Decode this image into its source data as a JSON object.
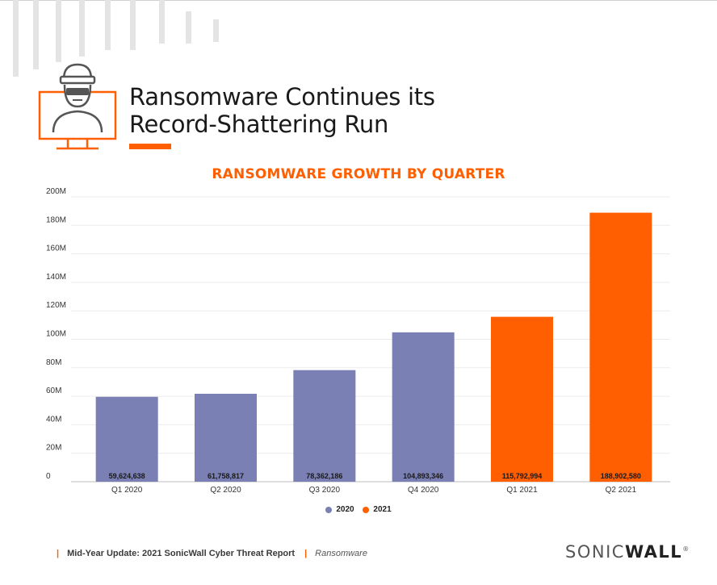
{
  "header": {
    "title_line1": "Ransomware Continues its",
    "title_line2": "Record-Shattering Run"
  },
  "chart_data": {
    "type": "bar",
    "title": "RANSOMWARE GROWTH BY QUARTER",
    "categories": [
      "Q1 2020",
      "Q2 2020",
      "Q3 2020",
      "Q4 2020",
      "Q1 2021",
      "Q2 2021"
    ],
    "values": [
      59624638,
      61758817,
      78362186,
      104893346,
      115792994,
      188902580
    ],
    "value_labels": [
      "59,624,638",
      "61,758,817",
      "78,362,186",
      "104,893,346",
      "115,792,994",
      "188,902,580"
    ],
    "bar_series": [
      "2020",
      "2020",
      "2020",
      "2020",
      "2021",
      "2021"
    ],
    "series": [
      {
        "name": "2020",
        "color": "#7a7fb4"
      },
      {
        "name": "2021",
        "color": "#ff5f00"
      }
    ],
    "yticks": [
      0,
      20000000,
      40000000,
      60000000,
      80000000,
      100000000,
      120000000,
      140000000,
      160000000,
      180000000,
      200000000
    ],
    "ytick_labels": [
      "0",
      "20M",
      "40M",
      "60M",
      "80M",
      "100M",
      "120M",
      "140M",
      "160M",
      "180M",
      "200M"
    ],
    "ylim": [
      0,
      200000000
    ],
    "grid": true,
    "legend_position": "bottom-center"
  },
  "footer": {
    "report": "Mid-Year Update: 2021 SonicWall Cyber Threat Report",
    "section": "Ransomware",
    "logo_part1": "SONIC",
    "logo_part2": "WALL",
    "logo_mark": "®"
  },
  "colors": {
    "accent": "#ff5f00",
    "series_2020": "#7a7fb4"
  }
}
